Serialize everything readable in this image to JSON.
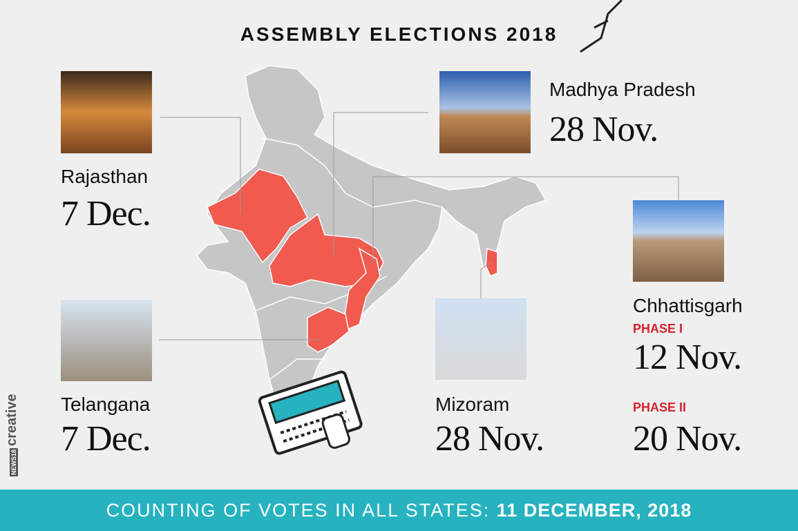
{
  "title": "ASSEMBLY ELECTIONS 2018",
  "states": [
    {
      "name": "Rajasthan",
      "date": "7 Dec."
    },
    {
      "name": "Madhya Pradesh",
      "date": "28 Nov."
    },
    {
      "name": "Chhattisgarh",
      "phases": [
        {
          "label": "PHASE I",
          "date": "12 Nov."
        },
        {
          "label": "PHASE II",
          "date": "20 Nov."
        }
      ]
    },
    {
      "name": "Telangana",
      "date": "7 Dec."
    },
    {
      "name": "Mizoram",
      "date": "28 Nov."
    }
  ],
  "footer": {
    "label": "COUNTING OF VOTES IN ALL STATES:",
    "date": "11 DECEMBER, 2018"
  },
  "brand": {
    "logo": "NEWS18",
    "label": "creative"
  }
}
